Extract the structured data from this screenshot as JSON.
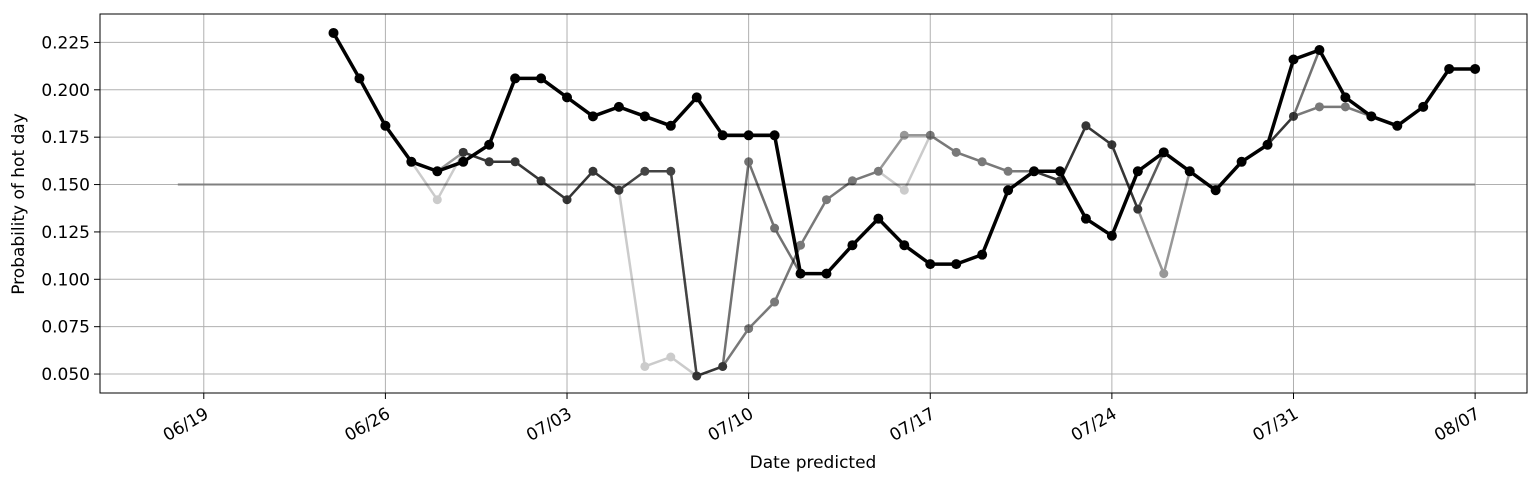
{
  "chart_data": {
    "type": "line",
    "xlabel": "Date predicted",
    "ylabel": "Probability of hot day",
    "x_axis": {
      "type": "date",
      "range": [
        "2023-06-15",
        "2023-08-09"
      ],
      "ticks": [
        {
          "date": "2023-06-19",
          "label": "06/19"
        },
        {
          "date": "2023-06-26",
          "label": "06/26"
        },
        {
          "date": "2023-07-03",
          "label": "07/03"
        },
        {
          "date": "2023-07-10",
          "label": "07/10"
        },
        {
          "date": "2023-07-17",
          "label": "07/17"
        },
        {
          "date": "2023-07-24",
          "label": "07/24"
        },
        {
          "date": "2023-07-31",
          "label": "07/31"
        },
        {
          "date": "2023-08-07",
          "label": "08/07"
        }
      ]
    },
    "y_axis": {
      "range": [
        0.04,
        0.24
      ],
      "ticks": [
        0.05,
        0.075,
        0.1,
        0.125,
        0.15,
        0.175,
        0.2,
        0.225
      ],
      "tick_labels": [
        "0.050",
        "0.075",
        "0.100",
        "0.125",
        "0.150",
        "0.175",
        "0.200",
        "0.225"
      ]
    },
    "grid": true,
    "legend": "none",
    "reference_line": {
      "y": 0.15,
      "x_start": "2023-06-18",
      "x_end": "2023-08-07",
      "color": "#808080"
    },
    "series": [
      {
        "color": "#000000",
        "opacity": 0.2,
        "points": [
          [
            "2023-06-27",
            0.162
          ],
          [
            "2023-06-28",
            0.142
          ],
          [
            "2023-06-29",
            0.167
          ],
          [
            "2023-06-30",
            0.162
          ],
          [
            "2023-07-01",
            0.162
          ],
          [
            "2023-07-02",
            0.152
          ],
          [
            "2023-07-03",
            0.142
          ],
          [
            "2023-07-04",
            0.157
          ],
          [
            "2023-07-05",
            0.147
          ],
          [
            "2023-07-06",
            0.054
          ],
          [
            "2023-07-07",
            0.059
          ],
          [
            "2023-07-08",
            0.049
          ],
          [
            "2023-07-09",
            0.054
          ],
          [
            "2023-07-10",
            0.074
          ],
          [
            "2023-07-11",
            0.088
          ],
          [
            "2023-07-12",
            0.118
          ],
          [
            "2023-07-13",
            0.142
          ],
          [
            "2023-07-14",
            0.152
          ],
          [
            "2023-07-15",
            0.157
          ],
          [
            "2023-07-16",
            0.147
          ],
          [
            "2023-07-17",
            0.176
          ],
          [
            "2023-07-18",
            0.167
          ],
          [
            "2023-07-19",
            0.162
          ],
          [
            "2023-07-20",
            0.157
          ],
          [
            "2023-07-21",
            0.157
          ],
          [
            "2023-07-22",
            0.152
          ],
          [
            "2023-07-23",
            0.181
          ],
          [
            "2023-07-24",
            0.171
          ],
          [
            "2023-07-25",
            0.137
          ],
          [
            "2023-07-26",
            0.167
          ],
          [
            "2023-07-27",
            0.157
          ],
          [
            "2023-07-28",
            0.147
          ],
          [
            "2023-07-29",
            0.162
          ],
          [
            "2023-07-30",
            0.171
          ],
          [
            "2023-07-31",
            0.186
          ],
          [
            "2023-08-01",
            0.191
          ],
          [
            "2023-08-02",
            0.191
          ],
          [
            "2023-08-03",
            0.186
          ],
          [
            "2023-08-04",
            0.181
          ],
          [
            "2023-08-05",
            0.191
          ],
          [
            "2023-08-06",
            0.211
          ],
          [
            "2023-08-07",
            0.211
          ]
        ]
      },
      {
        "color": "#000000",
        "opacity": 0.4,
        "points": [
          [
            "2023-06-28",
            0.157
          ],
          [
            "2023-06-29",
            0.167
          ],
          [
            "2023-06-30",
            0.162
          ],
          [
            "2023-07-01",
            0.162
          ],
          [
            "2023-07-02",
            0.152
          ],
          [
            "2023-07-03",
            0.142
          ],
          [
            "2023-07-04",
            0.157
          ],
          [
            "2023-07-05",
            0.147
          ],
          [
            "2023-07-06",
            0.157
          ],
          [
            "2023-07-07",
            0.157
          ],
          [
            "2023-07-08",
            0.049
          ],
          [
            "2023-07-09",
            0.054
          ],
          [
            "2023-07-10",
            0.074
          ],
          [
            "2023-07-11",
            0.088
          ],
          [
            "2023-07-12",
            0.118
          ],
          [
            "2023-07-13",
            0.142
          ],
          [
            "2023-07-14",
            0.152
          ],
          [
            "2023-07-15",
            0.157
          ],
          [
            "2023-07-16",
            0.176
          ],
          [
            "2023-07-17",
            0.176
          ],
          [
            "2023-07-18",
            0.167
          ],
          [
            "2023-07-19",
            0.162
          ],
          [
            "2023-07-20",
            0.157
          ],
          [
            "2023-07-21",
            0.157
          ],
          [
            "2023-07-22",
            0.152
          ],
          [
            "2023-07-23",
            0.181
          ],
          [
            "2023-07-24",
            0.171
          ],
          [
            "2023-07-25",
            0.137
          ],
          [
            "2023-07-26",
            0.103
          ],
          [
            "2023-07-27",
            0.157
          ],
          [
            "2023-07-28",
            0.147
          ],
          [
            "2023-07-29",
            0.162
          ],
          [
            "2023-07-30",
            0.171
          ],
          [
            "2023-07-31",
            0.186
          ],
          [
            "2023-08-01",
            0.191
          ],
          [
            "2023-08-02",
            0.191
          ],
          [
            "2023-08-03",
            0.186
          ],
          [
            "2023-08-04",
            0.181
          ],
          [
            "2023-08-05",
            0.191
          ],
          [
            "2023-08-06",
            0.211
          ],
          [
            "2023-08-07",
            0.211
          ]
        ]
      },
      {
        "color": "#000000",
        "opacity": 0.55,
        "points": [
          [
            "2023-06-29",
            0.167
          ],
          [
            "2023-06-30",
            0.162
          ],
          [
            "2023-07-01",
            0.162
          ],
          [
            "2023-07-02",
            0.152
          ],
          [
            "2023-07-03",
            0.142
          ],
          [
            "2023-07-04",
            0.157
          ],
          [
            "2023-07-05",
            0.147
          ],
          [
            "2023-07-06",
            0.157
          ],
          [
            "2023-07-07",
            0.157
          ],
          [
            "2023-07-08",
            0.049
          ],
          [
            "2023-07-09",
            0.054
          ],
          [
            "2023-07-10",
            0.162
          ],
          [
            "2023-07-11",
            0.127
          ],
          [
            "2023-07-12",
            0.103
          ],
          [
            "2023-07-13",
            0.103
          ],
          [
            "2023-07-14",
            0.118
          ],
          [
            "2023-07-15",
            0.132
          ],
          [
            "2023-07-16",
            0.118
          ],
          [
            "2023-07-17",
            0.108
          ],
          [
            "2023-07-18",
            0.108
          ],
          [
            "2023-07-19",
            0.113
          ],
          [
            "2023-07-20",
            0.147
          ],
          [
            "2023-07-21",
            0.157
          ],
          [
            "2023-07-22",
            0.152
          ],
          [
            "2023-07-23",
            0.181
          ],
          [
            "2023-07-24",
            0.171
          ],
          [
            "2023-07-25",
            0.137
          ],
          [
            "2023-07-26",
            0.167
          ],
          [
            "2023-07-27",
            0.157
          ],
          [
            "2023-07-28",
            0.147
          ],
          [
            "2023-07-29",
            0.162
          ],
          [
            "2023-07-30",
            0.171
          ],
          [
            "2023-07-31",
            0.186
          ],
          [
            "2023-08-01",
            0.221
          ],
          [
            "2023-08-02",
            0.196
          ],
          [
            "2023-08-03",
            0.186
          ],
          [
            "2023-08-04",
            0.181
          ],
          [
            "2023-08-05",
            0.191
          ],
          [
            "2023-08-06",
            0.211
          ],
          [
            "2023-08-07",
            0.211
          ]
        ]
      },
      {
        "color": "#000000",
        "opacity": 1.0,
        "points": [
          [
            "2023-06-24",
            0.23
          ],
          [
            "2023-06-25",
            0.206
          ],
          [
            "2023-06-26",
            0.181
          ],
          [
            "2023-06-27",
            0.162
          ],
          [
            "2023-06-28",
            0.157
          ],
          [
            "2023-06-29",
            0.162
          ],
          [
            "2023-06-30",
            0.171
          ],
          [
            "2023-07-01",
            0.206
          ],
          [
            "2023-07-02",
            0.206
          ],
          [
            "2023-07-03",
            0.196
          ],
          [
            "2023-07-04",
            0.186
          ],
          [
            "2023-07-05",
            0.191
          ],
          [
            "2023-07-06",
            0.186
          ],
          [
            "2023-07-07",
            0.181
          ],
          [
            "2023-07-08",
            0.196
          ],
          [
            "2023-07-09",
            0.176
          ],
          [
            "2023-07-10",
            0.176
          ],
          [
            "2023-07-11",
            0.176
          ],
          [
            "2023-07-12",
            0.103
          ],
          [
            "2023-07-13",
            0.103
          ],
          [
            "2023-07-14",
            0.118
          ],
          [
            "2023-07-15",
            0.132
          ],
          [
            "2023-07-16",
            0.118
          ],
          [
            "2023-07-17",
            0.108
          ],
          [
            "2023-07-18",
            0.108
          ],
          [
            "2023-07-19",
            0.113
          ],
          [
            "2023-07-20",
            0.147
          ],
          [
            "2023-07-21",
            0.157
          ],
          [
            "2023-07-22",
            0.157
          ],
          [
            "2023-07-23",
            0.132
          ],
          [
            "2023-07-24",
            0.123
          ],
          [
            "2023-07-25",
            0.157
          ],
          [
            "2023-07-26",
            0.167
          ],
          [
            "2023-07-27",
            0.157
          ],
          [
            "2023-07-28",
            0.147
          ],
          [
            "2023-07-29",
            0.162
          ],
          [
            "2023-07-30",
            0.171
          ],
          [
            "2023-07-31",
            0.216
          ],
          [
            "2023-08-01",
            0.221
          ],
          [
            "2023-08-02",
            0.196
          ],
          [
            "2023-08-03",
            0.186
          ],
          [
            "2023-08-04",
            0.181
          ],
          [
            "2023-08-05",
            0.191
          ],
          [
            "2023-08-06",
            0.211
          ],
          [
            "2023-08-07",
            0.211
          ]
        ]
      }
    ]
  }
}
